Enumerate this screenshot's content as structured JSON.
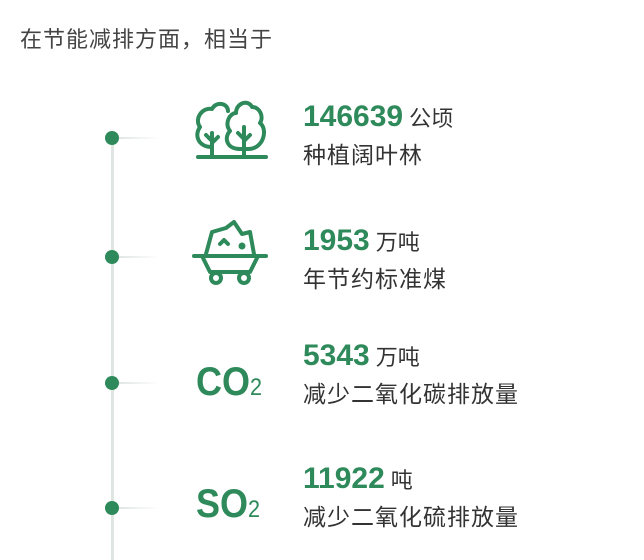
{
  "title": "在节能减排方面，相当于",
  "accent_color": "#2e8a5a",
  "items": [
    {
      "icon": "trees-icon",
      "value": "146639",
      "unit": "公顷",
      "desc": "种植阔叶林"
    },
    {
      "icon": "coal-cart-icon",
      "value": "1953",
      "unit": "万吨",
      "desc": "年节约标准煤"
    },
    {
      "icon": "co2-icon",
      "symbol": "CO",
      "sub": "2",
      "value": "5343",
      "unit": "万吨",
      "desc": "减少二氧化碳排放量"
    },
    {
      "icon": "so2-icon",
      "symbol": "SO",
      "sub": "2",
      "value": "11922",
      "unit": "吨",
      "desc": "减少二氧化硫排放量"
    }
  ]
}
